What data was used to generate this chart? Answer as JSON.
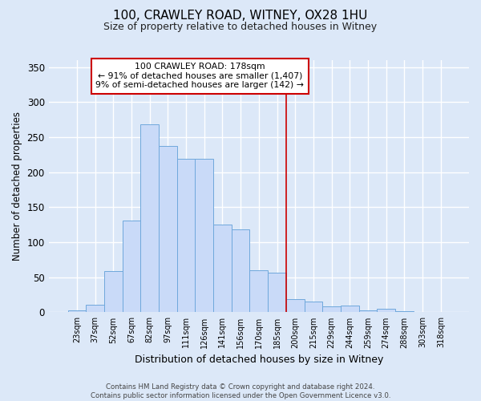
{
  "title": "100, CRAWLEY ROAD, WITNEY, OX28 1HU",
  "subtitle": "Size of property relative to detached houses in Witney",
  "xlabel": "Distribution of detached houses by size in Witney",
  "ylabel": "Number of detached properties",
  "bar_labels": [
    "23sqm",
    "37sqm",
    "52sqm",
    "67sqm",
    "82sqm",
    "97sqm",
    "111sqm",
    "126sqm",
    "141sqm",
    "156sqm",
    "170sqm",
    "185sqm",
    "200sqm",
    "215sqm",
    "229sqm",
    "244sqm",
    "259sqm",
    "274sqm",
    "288sqm",
    "303sqm",
    "318sqm"
  ],
  "bar_heights": [
    3,
    11,
    59,
    131,
    268,
    238,
    219,
    219,
    125,
    118,
    60,
    57,
    19,
    15,
    8,
    10,
    3,
    5,
    2,
    0,
    1
  ],
  "bar_color": "#c9daf8",
  "bar_edge_color": "#6fa8dc",
  "vline_x": 11.5,
  "vline_color": "#cc0000",
  "annotation_title": "100 CRAWLEY ROAD: 178sqm",
  "annotation_line1": "← 91% of detached houses are smaller (1,407)",
  "annotation_line2": "9% of semi-detached houses are larger (142) →",
  "annotation_box_color": "#ffffff",
  "annotation_box_edge": "#cc0000",
  "ylim": [
    0,
    360
  ],
  "yticks": [
    0,
    50,
    100,
    150,
    200,
    250,
    300,
    350
  ],
  "footer_line1": "Contains HM Land Registry data © Crown copyright and database right 2024.",
  "footer_line2": "Contains public sector information licensed under the Open Government Licence v3.0.",
  "bg_color": "#dce8f8",
  "grid_color": "#ffffff"
}
